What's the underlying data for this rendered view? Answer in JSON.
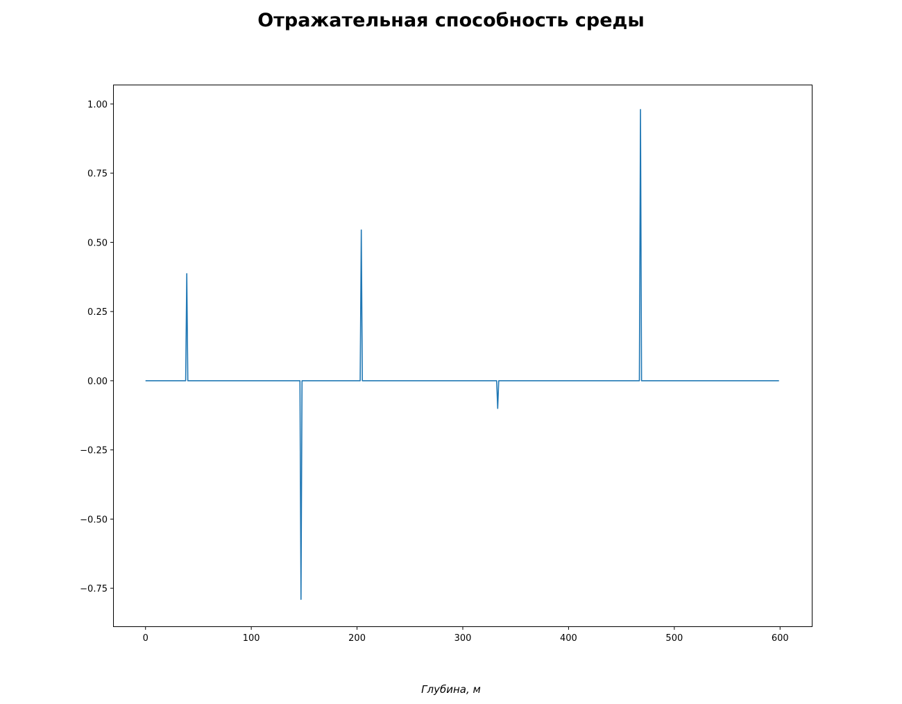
{
  "chart_data": {
    "type": "line",
    "title": "Отражательная способность среды",
    "xlabel": "Глубина, м",
    "ylabel": "",
    "xlim": [
      -30,
      630
    ],
    "ylim": [
      -0.8875,
      1.0675
    ],
    "x_ticks": [
      0,
      100,
      200,
      300,
      400,
      500,
      600
    ],
    "x_tick_labels": [
      "0",
      "100",
      "200",
      "300",
      "400",
      "500",
      "600"
    ],
    "y_ticks": [
      -0.75,
      -0.5,
      -0.25,
      0.0,
      0.25,
      0.5,
      0.75,
      1.0
    ],
    "y_tick_labels": [
      "−0.75",
      "−0.50",
      "−0.25",
      "0.00",
      "0.25",
      "0.50",
      "0.75",
      "1.00"
    ],
    "grid": false,
    "line_color": "#1f77b4",
    "series": [
      {
        "x": [
          0,
          38,
          39,
          40,
          146,
          147,
          148,
          203,
          204,
          205,
          332,
          333,
          334,
          467,
          468,
          469,
          599
        ],
        "y": [
          0,
          0,
          0.387,
          0,
          0,
          -0.79,
          0,
          0,
          0.545,
          0,
          0,
          -0.1,
          0,
          0,
          0.98,
          0,
          0
        ]
      }
    ]
  }
}
